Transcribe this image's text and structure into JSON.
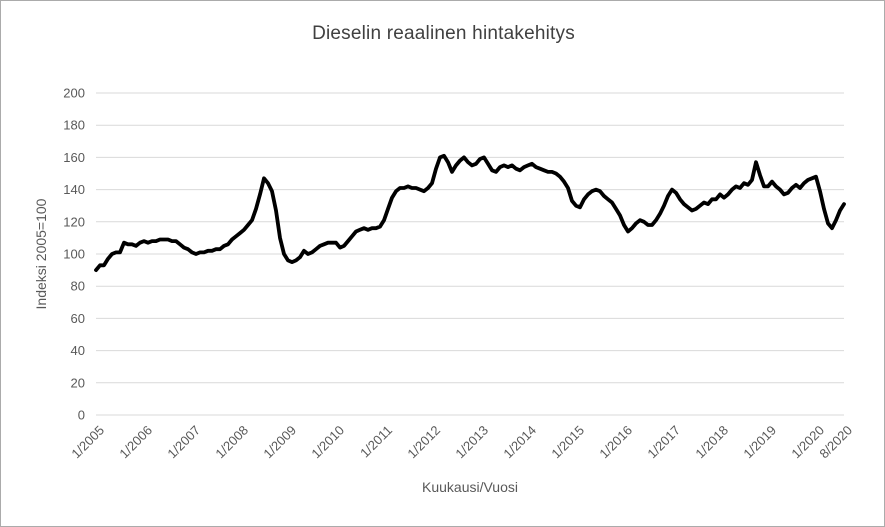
{
  "frame": {
    "background": "#ffffff",
    "border_color": "#ababab"
  },
  "chart_data": {
    "type": "line",
    "title": "Dieselin reaalinen hintakehitys",
    "xlabel": "Kuukausi/Vuosi",
    "ylabel": "Indeksi 2005=100",
    "ylim": [
      0,
      200
    ],
    "yticks": [
      0,
      20,
      40,
      60,
      80,
      100,
      120,
      140,
      160,
      180,
      200
    ],
    "grid": true,
    "legend_position": "none",
    "x_start_label": "1/2005",
    "x_end_label": "8/2020",
    "x_tick_labels": [
      "1/2005",
      "1/2006",
      "1/2007",
      "1/2008",
      "1/2009",
      "1/2010",
      "1/2011",
      "1/2012",
      "1/2013",
      "1/2014",
      "1/2015",
      "1/2016",
      "1/2017",
      "1/2018",
      "1/2019",
      "1/2020",
      "8/2020"
    ],
    "x_tick_month_index": [
      0,
      12,
      24,
      36,
      48,
      60,
      72,
      84,
      96,
      108,
      120,
      132,
      144,
      156,
      168,
      180,
      187
    ],
    "colors": {
      "line": "#000000",
      "grid": "#d9d9d9",
      "tick_text": "#595959",
      "title_text": "#404040"
    },
    "series": [
      {
        "points_per_year": 12,
        "first_point": "1/2005",
        "last_point": "8/2020",
        "values": [
          90,
          93,
          93,
          97,
          100,
          101,
          101,
          107,
          106,
          106,
          105,
          107,
          108,
          107,
          108,
          108,
          109,
          109,
          109,
          108,
          108,
          106,
          104,
          103,
          101,
          100,
          101,
          101,
          102,
          102,
          103,
          103,
          105,
          106,
          109,
          111,
          113,
          115,
          118,
          121,
          128,
          137,
          147,
          144,
          139,
          127,
          110,
          100,
          96,
          95,
          96,
          98,
          102,
          100,
          101,
          103,
          105,
          106,
          107,
          107,
          107,
          104,
          105,
          108,
          111,
          114,
          115,
          116,
          115,
          116,
          116,
          117,
          121,
          128,
          135,
          139,
          141,
          141,
          142,
          141,
          141,
          140,
          139,
          141,
          144,
          153,
          160,
          161,
          157,
          151,
          155,
          158,
          160,
          157,
          155,
          156,
          159,
          160,
          156,
          152,
          151,
          154,
          155,
          154,
          155,
          153,
          152,
          154,
          155,
          156,
          154,
          153,
          152,
          151,
          151,
          150,
          148,
          145,
          141,
          133,
          130,
          129,
          134,
          137,
          139,
          140,
          139,
          136,
          134,
          132,
          128,
          124,
          118,
          114,
          116,
          119,
          121,
          120,
          118,
          118,
          121,
          125,
          130,
          136,
          140,
          138,
          134,
          131,
          129,
          127,
          128,
          130,
          132,
          131,
          134,
          134,
          137,
          135,
          137,
          140,
          142,
          141,
          144,
          143,
          146,
          157,
          149,
          142,
          142,
          145,
          142,
          140,
          137,
          138,
          141,
          143,
          141,
          144,
          146,
          147,
          148,
          139,
          128,
          119,
          116,
          121,
          127,
          131
        ]
      }
    ]
  }
}
